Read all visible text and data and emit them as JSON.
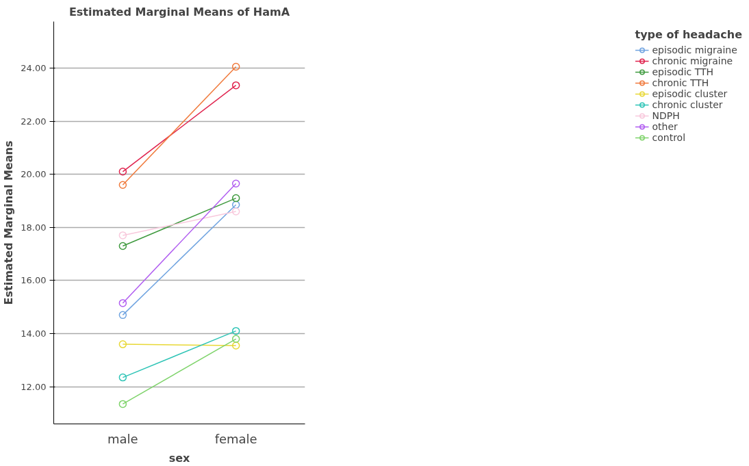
{
  "chart_data": {
    "type": "line",
    "title": "Estimated Marginal Means of HamA",
    "xlabel": "sex",
    "ylabel": "Estimated Marginal Means",
    "legend_title": "type of headache",
    "categories": [
      "male",
      "female"
    ],
    "series": [
      {
        "name": "episodic migraine",
        "color": "#6fa3e0",
        "values": [
          14.7,
          18.85
        ]
      },
      {
        "name": "chronic migraine",
        "color": "#e0234e",
        "values": [
          20.1,
          23.35
        ]
      },
      {
        "name": "episodic TTH",
        "color": "#3f9a3f",
        "values": [
          17.3,
          19.1
        ]
      },
      {
        "name": "chronic TTH",
        "color": "#f07a3c",
        "values": [
          19.6,
          24.05
        ]
      },
      {
        "name": "episodic cluster",
        "color": "#e8d836",
        "values": [
          13.6,
          13.55
        ]
      },
      {
        "name": "chronic cluster",
        "color": "#2ec4b6",
        "values": [
          12.35,
          14.1
        ]
      },
      {
        "name": "NDPH",
        "color": "#f8c8dc",
        "values": [
          17.7,
          18.6
        ]
      },
      {
        "name": "other",
        "color": "#b05cf0",
        "values": [
          15.15,
          19.65
        ]
      },
      {
        "name": "control",
        "color": "#7ed36a",
        "values": [
          11.35,
          13.8
        ]
      }
    ],
    "ylim": [
      10.6,
      25.75
    ],
    "yticks": [
      {
        "value": 12,
        "label": "12.00"
      },
      {
        "value": 14,
        "label": "14.00"
      },
      {
        "value": 16,
        "label": "16.00"
      },
      {
        "value": 18,
        "label": "18.00"
      },
      {
        "value": 20,
        "label": "20.00"
      },
      {
        "value": 22,
        "label": "22.00"
      },
      {
        "value": 24,
        "label": "24.00"
      }
    ],
    "grid": "y",
    "legend": "right",
    "marker": "circle",
    "line_style": "solid"
  }
}
